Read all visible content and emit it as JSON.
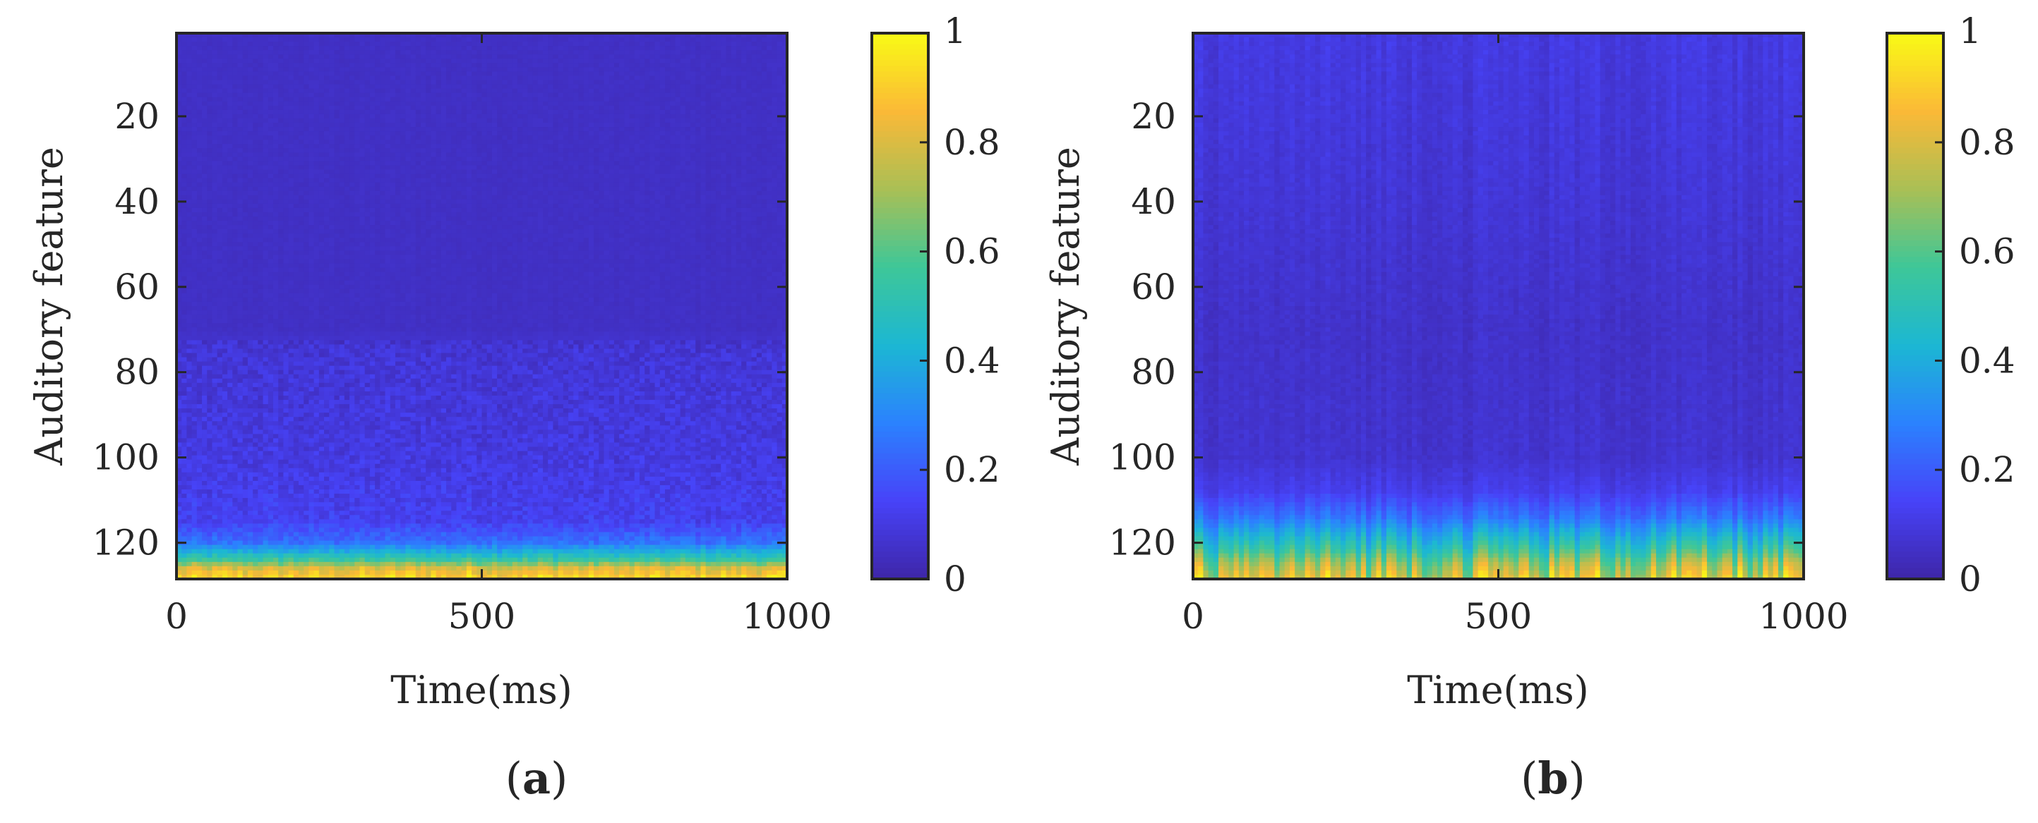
{
  "figure": {
    "panels": [
      {
        "label_open": "(",
        "label_letter": "a",
        "label_close": ")"
      },
      {
        "label_open": "(",
        "label_letter": "b",
        "label_close": ")"
      }
    ]
  },
  "colors": {
    "colormap": [
      "#3e26a8",
      "#4743f8",
      "#2b82fe",
      "#1cb7d3",
      "#3ec798",
      "#aabf55",
      "#fbb937",
      "#f9fb15"
    ],
    "axis": "#262626",
    "background": "#ffffff"
  },
  "chart_data": [
    {
      "type": "heatmap",
      "panel": "a",
      "xlabel": "Time(ms)",
      "ylabel": "Auditory feature",
      "xlim": [
        0,
        1000
      ],
      "ylim": [
        1,
        128
      ],
      "y_direction": "reversed",
      "x_ticks": [
        0,
        500,
        1000
      ],
      "x_tick_labels": [
        "0",
        "500",
        "1000"
      ],
      "y_ticks": [
        20,
        40,
        60,
        80,
        100,
        120
      ],
      "y_tick_labels": [
        "20",
        "40",
        "60",
        "80",
        "100",
        "120"
      ],
      "colorbar": {
        "range": [
          0,
          1
        ],
        "ticks": [
          0,
          0.2,
          0.4,
          0.6,
          0.8,
          1
        ],
        "tick_labels": [
          "0",
          "0.2",
          "0.4",
          "0.6",
          "0.8",
          "1"
        ]
      },
      "value_profile_by_feature": [
        {
          "feature": 1,
          "value": 0.05
        },
        {
          "feature": 70,
          "value": 0.05
        },
        {
          "feature": 75,
          "value": 0.08
        },
        {
          "feature": 100,
          "value": 0.1
        },
        {
          "feature": 115,
          "value": 0.13
        },
        {
          "feature": 120,
          "value": 0.25
        },
        {
          "feature": 124,
          "value": 0.55
        },
        {
          "feature": 126,
          "value": 0.8
        },
        {
          "feature": 128,
          "value": 0.9
        }
      ],
      "time_variation": "weak"
    },
    {
      "type": "heatmap",
      "panel": "b",
      "xlabel": "Time(ms)",
      "ylabel": "Auditory feature",
      "xlim": [
        0,
        1000
      ],
      "ylim": [
        1,
        128
      ],
      "y_direction": "reversed",
      "x_ticks": [
        0,
        500,
        1000
      ],
      "x_tick_labels": [
        "0",
        "500",
        "1000"
      ],
      "y_ticks": [
        20,
        40,
        60,
        80,
        100,
        120
      ],
      "y_tick_labels": [
        "20",
        "40",
        "60",
        "80",
        "100",
        "120"
      ],
      "colorbar": {
        "range": [
          0,
          1
        ],
        "ticks": [
          0,
          0.2,
          0.4,
          0.6,
          0.8,
          1
        ],
        "tick_labels": [
          "0",
          "0.2",
          "0.4",
          "0.6",
          "0.8",
          "1"
        ]
      },
      "value_profile_by_feature": [
        {
          "feature": 1,
          "value": 0.1
        },
        {
          "feature": 40,
          "value": 0.08
        },
        {
          "feature": 70,
          "value": 0.06
        },
        {
          "feature": 100,
          "value": 0.07
        },
        {
          "feature": 108,
          "value": 0.12
        },
        {
          "feature": 114,
          "value": 0.25
        },
        {
          "feature": 118,
          "value": 0.4
        },
        {
          "feature": 122,
          "value": 0.55
        },
        {
          "feature": 125,
          "value": 0.7
        },
        {
          "feature": 128,
          "value": 0.8
        }
      ],
      "time_variation": "strong vertical streaks"
    }
  ]
}
